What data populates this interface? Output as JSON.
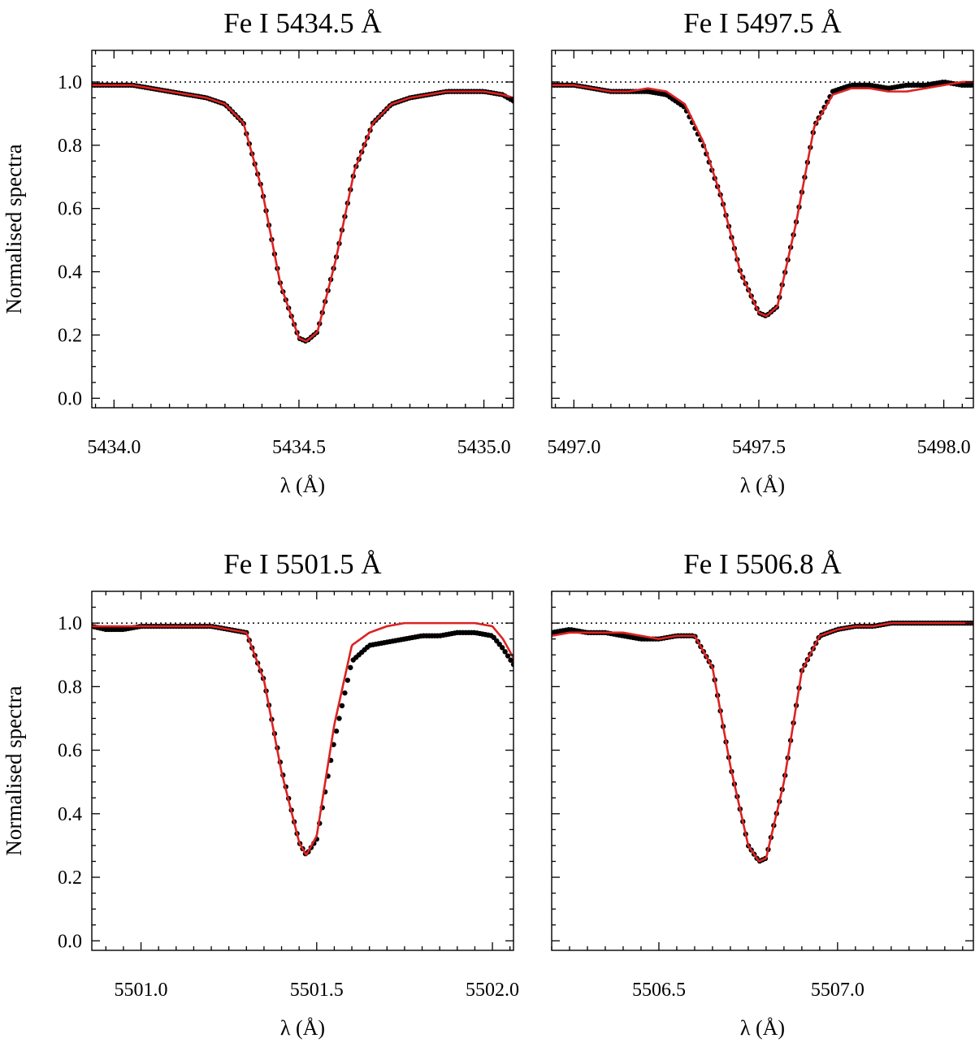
{
  "figure": {
    "ylabel": "Normalised spectra",
    "xlabel": "λ (Å)",
    "colors": {
      "observed": "#000000",
      "model": "#dd2222",
      "continuum": "#000000"
    }
  },
  "chart_data": [
    {
      "type": "line",
      "title": "Fe I  5434.5 Å",
      "xlabel": "λ (Å)",
      "ylabel": "Normalised spectra",
      "xlim": [
        5433.94,
        5435.08
      ],
      "ylim": [
        -0.03,
        1.1
      ],
      "xticks": [
        5434.0,
        5434.5,
        5435.0
      ],
      "xtick_labels": [
        "5434.0",
        "5434.5",
        "5435.0"
      ],
      "yticks": [
        0.0,
        0.2,
        0.4,
        0.6,
        0.8,
        1.0
      ],
      "ytick_labels": [
        "0.0",
        "0.2",
        "0.4",
        "0.6",
        "0.8",
        "1.0"
      ],
      "continuum": 1.0,
      "series": [
        {
          "name": "observed",
          "style": "points",
          "x": [
            5433.94,
            5434.0,
            5434.05,
            5434.1,
            5434.15,
            5434.2,
            5434.25,
            5434.3,
            5434.35,
            5434.4,
            5434.45,
            5434.5,
            5434.52,
            5434.55,
            5434.6,
            5434.65,
            5434.7,
            5434.75,
            5434.8,
            5434.85,
            5434.9,
            5434.95,
            5435.0,
            5435.05,
            5435.08
          ],
          "y": [
            0.99,
            0.99,
            0.99,
            0.98,
            0.97,
            0.96,
            0.95,
            0.93,
            0.87,
            0.66,
            0.36,
            0.19,
            0.18,
            0.21,
            0.44,
            0.72,
            0.87,
            0.93,
            0.95,
            0.96,
            0.97,
            0.97,
            0.97,
            0.96,
            0.94
          ]
        },
        {
          "name": "model",
          "style": "line",
          "x": [
            5433.94,
            5434.0,
            5434.05,
            5434.1,
            5434.15,
            5434.2,
            5434.25,
            5434.3,
            5434.35,
            5434.4,
            5434.45,
            5434.5,
            5434.52,
            5434.55,
            5434.6,
            5434.65,
            5434.7,
            5434.75,
            5434.8,
            5434.85,
            5434.9,
            5434.95,
            5435.0,
            5435.05,
            5435.08
          ],
          "y": [
            0.99,
            0.99,
            0.99,
            0.98,
            0.97,
            0.96,
            0.95,
            0.93,
            0.87,
            0.66,
            0.36,
            0.19,
            0.18,
            0.21,
            0.44,
            0.72,
            0.87,
            0.93,
            0.95,
            0.96,
            0.97,
            0.97,
            0.97,
            0.96,
            0.95
          ]
        }
      ]
    },
    {
      "type": "line",
      "title": "Fe I  5497.5 Å",
      "xlabel": "λ (Å)",
      "ylabel": "",
      "xlim": [
        5496.94,
        5498.08
      ],
      "ylim": [
        -0.03,
        1.1
      ],
      "xticks": [
        5497.0,
        5497.5,
        5498.0
      ],
      "xtick_labels": [
        "5497.0",
        "5497.5",
        "5498.0"
      ],
      "yticks": [
        0.0,
        0.2,
        0.4,
        0.6,
        0.8,
        1.0
      ],
      "ytick_labels": [],
      "continuum": 1.0,
      "series": [
        {
          "name": "observed",
          "style": "points",
          "x": [
            5496.94,
            5497.0,
            5497.05,
            5497.1,
            5497.15,
            5497.2,
            5497.25,
            5497.3,
            5497.35,
            5497.4,
            5497.45,
            5497.5,
            5497.52,
            5497.55,
            5497.6,
            5497.65,
            5497.7,
            5497.75,
            5497.8,
            5497.85,
            5497.9,
            5497.95,
            5498.0,
            5498.05,
            5498.08
          ],
          "y": [
            0.99,
            0.99,
            0.98,
            0.97,
            0.97,
            0.97,
            0.96,
            0.92,
            0.8,
            0.63,
            0.4,
            0.27,
            0.26,
            0.29,
            0.55,
            0.86,
            0.97,
            0.99,
            0.99,
            0.98,
            0.99,
            0.99,
            1.0,
            0.99,
            0.99
          ]
        },
        {
          "name": "model",
          "style": "line",
          "x": [
            5496.94,
            5497.0,
            5497.05,
            5497.1,
            5497.15,
            5497.2,
            5497.25,
            5497.3,
            5497.35,
            5497.4,
            5497.45,
            5497.5,
            5497.52,
            5497.55,
            5497.6,
            5497.65,
            5497.7,
            5497.75,
            5497.8,
            5497.85,
            5497.9,
            5497.95,
            5498.0,
            5498.05,
            5498.08
          ],
          "y": [
            0.99,
            0.99,
            0.98,
            0.97,
            0.97,
            0.98,
            0.97,
            0.93,
            0.81,
            0.63,
            0.4,
            0.27,
            0.26,
            0.29,
            0.55,
            0.86,
            0.96,
            0.98,
            0.98,
            0.97,
            0.97,
            0.98,
            0.99,
            1.0,
            1.0
          ]
        }
      ]
    },
    {
      "type": "line",
      "title": "Fe I  5501.5 Å",
      "xlabel": "λ (Å)",
      "ylabel": "Normalised spectra",
      "xlim": [
        5500.86,
        5502.06
      ],
      "ylim": [
        -0.03,
        1.1
      ],
      "xticks": [
        5501.0,
        5501.5,
        5502.0
      ],
      "xtick_labels": [
        "5501.0",
        "5501.5",
        "5502.0"
      ],
      "yticks": [
        0.0,
        0.2,
        0.4,
        0.6,
        0.8,
        1.0
      ],
      "ytick_labels": [
        "0.0",
        "0.2",
        "0.4",
        "0.6",
        "0.8",
        "1.0"
      ],
      "continuum": 1.0,
      "series": [
        {
          "name": "observed",
          "style": "points",
          "x": [
            5500.86,
            5500.9,
            5500.95,
            5501.0,
            5501.05,
            5501.1,
            5501.15,
            5501.2,
            5501.25,
            5501.3,
            5501.35,
            5501.4,
            5501.45,
            5501.47,
            5501.5,
            5501.55,
            5501.6,
            5501.65,
            5501.7,
            5501.75,
            5501.8,
            5501.85,
            5501.9,
            5501.95,
            5502.0,
            5502.03,
            5502.06
          ],
          "y": [
            0.99,
            0.98,
            0.98,
            0.99,
            0.99,
            0.99,
            0.99,
            0.99,
            0.98,
            0.97,
            0.82,
            0.54,
            0.31,
            0.27,
            0.32,
            0.63,
            0.88,
            0.93,
            0.94,
            0.95,
            0.96,
            0.96,
            0.97,
            0.97,
            0.96,
            0.92,
            0.87
          ]
        },
        {
          "name": "model",
          "style": "line",
          "x": [
            5500.86,
            5500.9,
            5500.95,
            5501.0,
            5501.05,
            5501.1,
            5501.15,
            5501.2,
            5501.25,
            5501.3,
            5501.35,
            5501.4,
            5501.45,
            5501.47,
            5501.5,
            5501.55,
            5501.6,
            5501.65,
            5501.7,
            5501.75,
            5501.8,
            5501.85,
            5501.9,
            5501.95,
            5502.0,
            5502.03,
            5502.06
          ],
          "y": [
            0.99,
            0.99,
            0.99,
            0.99,
            0.99,
            0.99,
            0.99,
            0.99,
            0.98,
            0.97,
            0.82,
            0.53,
            0.31,
            0.27,
            0.33,
            0.68,
            0.93,
            0.97,
            0.99,
            1.0,
            1.0,
            1.0,
            1.0,
            1.0,
            0.99,
            0.95,
            0.89
          ]
        }
      ]
    },
    {
      "type": "line",
      "title": "Fe I  5506.8 Å",
      "xlabel": "λ (Å)",
      "ylabel": "",
      "xlim": [
        5506.2,
        5507.38
      ],
      "ylim": [
        -0.03,
        1.1
      ],
      "xticks": [
        5506.5,
        5507.0
      ],
      "xtick_labels": [
        "5506.5",
        "5507.0"
      ],
      "yticks": [
        0.0,
        0.2,
        0.4,
        0.6,
        0.8,
        1.0
      ],
      "ytick_labels": [],
      "continuum": 1.0,
      "series": [
        {
          "name": "observed",
          "style": "points",
          "x": [
            5506.2,
            5506.25,
            5506.3,
            5506.35,
            5506.4,
            5506.45,
            5506.5,
            5506.55,
            5506.6,
            5506.65,
            5506.7,
            5506.75,
            5506.78,
            5506.8,
            5506.85,
            5506.9,
            5506.95,
            5507.0,
            5507.05,
            5507.1,
            5507.15,
            5507.2,
            5507.25,
            5507.3,
            5507.35,
            5507.38
          ],
          "y": [
            0.97,
            0.98,
            0.97,
            0.97,
            0.96,
            0.95,
            0.95,
            0.96,
            0.96,
            0.86,
            0.55,
            0.3,
            0.25,
            0.26,
            0.5,
            0.85,
            0.96,
            0.98,
            0.99,
            0.99,
            1.0,
            1.0,
            1.0,
            1.0,
            1.0,
            1.0
          ]
        },
        {
          "name": "model",
          "style": "line",
          "x": [
            5506.2,
            5506.25,
            5506.3,
            5506.35,
            5506.4,
            5506.45,
            5506.5,
            5506.55,
            5506.6,
            5506.65,
            5506.7,
            5506.75,
            5506.78,
            5506.8,
            5506.85,
            5506.9,
            5506.95,
            5507.0,
            5507.05,
            5507.1,
            5507.15,
            5507.2,
            5507.25,
            5507.3,
            5507.35,
            5507.38
          ],
          "y": [
            0.96,
            0.97,
            0.97,
            0.97,
            0.97,
            0.96,
            0.95,
            0.96,
            0.96,
            0.86,
            0.55,
            0.3,
            0.25,
            0.26,
            0.5,
            0.85,
            0.96,
            0.98,
            0.99,
            0.99,
            1.0,
            1.0,
            1.0,
            1.0,
            1.0,
            1.0
          ]
        }
      ]
    }
  ]
}
